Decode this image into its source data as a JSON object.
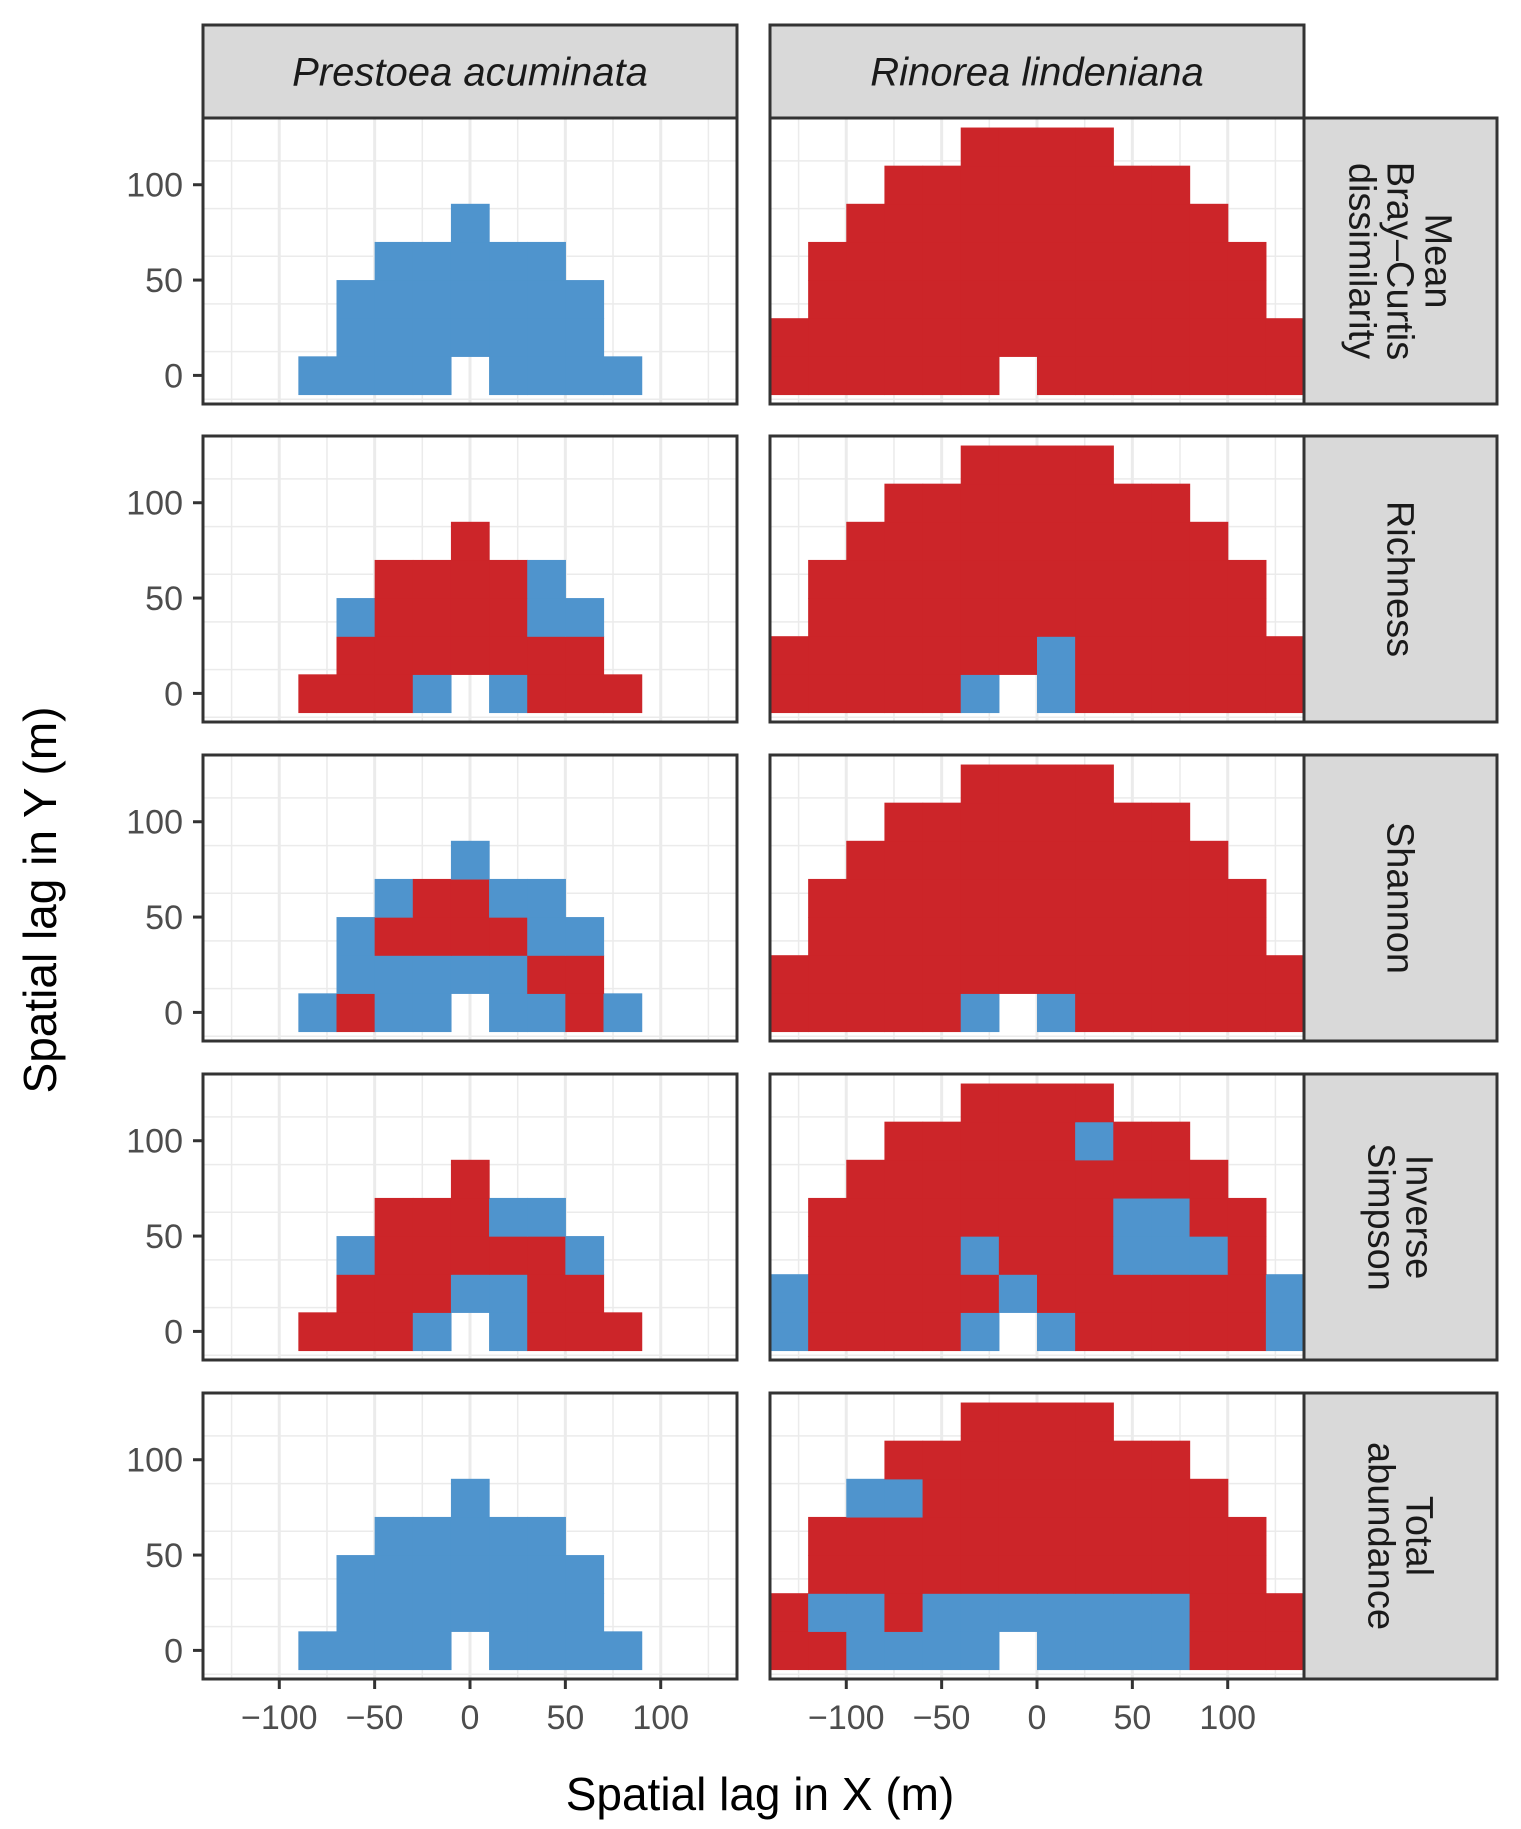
{
  "chart_data": {
    "type": "heatmap",
    "xlabel": "Spatial lag in X (m)",
    "ylabel": "Spatial lag in Y (m)",
    "x_ticks": [
      -100,
      -50,
      0,
      50,
      100
    ],
    "x_tick_labels": [
      "−100",
      "−50",
      "0",
      "50",
      "100"
    ],
    "y_ticks": [
      0,
      50,
      100
    ],
    "y_tick_labels": [
      "0",
      "50",
      "100"
    ],
    "xlim": [
      -140,
      140
    ],
    "ylim": [
      -15,
      135
    ],
    "cell_size": [
      20,
      20
    ],
    "colors": {
      "blue": "#4f94cd",
      "red": "#cc2529"
    },
    "columns": [
      "Prestoea acuminata",
      "Rinorea lindeniana"
    ],
    "rows": [
      "Mean\nBray–Curtis\ndissimilarity",
      "Richness",
      "Shannon",
      "Inverse\nSimpson",
      "Total\nabundance"
    ],
    "panels": [
      {
        "row": 0,
        "col": 0,
        "base": "blue",
        "cells": {}
      },
      {
        "row": 0,
        "col": 1,
        "base": "red",
        "cells": {}
      },
      {
        "row": 1,
        "col": 0,
        "base": "red",
        "cells": {
          "-20,0": "blue",
          "20,0": "blue",
          "-60,40": "blue",
          "40,60": "blue",
          "40,40": "blue",
          "60,40": "blue"
        }
      },
      {
        "row": 1,
        "col": 1,
        "base": "red",
        "cells": {
          "-30,0": "blue",
          "10,0": "blue",
          "10,20": "blue"
        }
      },
      {
        "row": 2,
        "col": 0,
        "base": "blue",
        "cells": {
          "-60,0": "red",
          "60,0": "red",
          "40,20": "red",
          "60,20": "red",
          "-40,40": "red",
          "-20,40": "red",
          "0,40": "red",
          "20,40": "red",
          "-20,60": "red",
          "0,60": "red"
        }
      },
      {
        "row": 2,
        "col": 1,
        "base": "red",
        "cells": {
          "-30,0": "blue",
          "10,0": "blue"
        }
      },
      {
        "row": 3,
        "col": 0,
        "base": "red",
        "cells": {
          "-20,0": "blue",
          "20,0": "blue",
          "0,20": "blue",
          "20,20": "blue",
          "-60,40": "blue",
          "60,40": "blue",
          "20,60": "blue",
          "40,60": "blue"
        }
      },
      {
        "row": 3,
        "col": 1,
        "base": "red",
        "cells": {
          "-130,0": "blue",
          "130,0": "blue",
          "-130,20": "blue",
          "130,20": "blue",
          "-30,0": "blue",
          "10,0": "blue",
          "-10,20": "blue",
          "-30,40": "blue",
          "50,40": "blue",
          "70,40": "blue",
          "90,40": "blue",
          "50,60": "blue",
          "70,60": "blue",
          "30,100": "blue"
        }
      },
      {
        "row": 4,
        "col": 0,
        "base": "blue",
        "cells": {}
      },
      {
        "row": 4,
        "col": 1,
        "base": "blue",
        "cells": {
          "-130,0": "red",
          "-110,0": "red",
          "90,0": "red",
          "110,0": "red",
          "130,0": "red",
          "-130,20": "red",
          "-70,20": "red",
          "90,20": "red",
          "110,20": "red",
          "130,20": "red",
          "-110,40": "red",
          "-90,40": "red",
          "-70,40": "red",
          "-50,40": "red",
          "-30,40": "red",
          "-10,40": "red",
          "10,40": "red",
          "30,40": "red",
          "50,40": "red",
          "70,40": "red",
          "90,40": "red",
          "110,40": "red",
          "-110,60": "red",
          "-90,60": "red",
          "-70,60": "red",
          "-50,60": "red",
          "-30,60": "red",
          "-10,60": "red",
          "10,60": "red",
          "30,60": "red",
          "50,60": "red",
          "70,60": "red",
          "90,60": "red",
          "110,60": "red",
          "-50,80": "red",
          "-30,80": "red",
          "-10,80": "red",
          "10,80": "red",
          "30,80": "red",
          "50,80": "red",
          "70,80": "red",
          "90,80": "red",
          "-70,100": "red",
          "-50,100": "red",
          "-30,100": "red",
          "-10,100": "red",
          "10,100": "red",
          "30,100": "red",
          "50,100": "red",
          "70,100": "red",
          "-30,120": "red",
          "-10,120": "red",
          "10,120": "red",
          "30,120": "red"
        }
      }
    ],
    "footprints": {
      "Prestoea acuminata": {
        "0": [
          -80,
          -60,
          -40,
          -20,
          20,
          40,
          60,
          80
        ],
        "20": [
          -60,
          -40,
          -20,
          0,
          20,
          40,
          60
        ],
        "40": [
          -60,
          -40,
          -20,
          0,
          20,
          40,
          60
        ],
        "60": [
          -40,
          -20,
          0,
          20,
          40
        ],
        "80": [
          0
        ]
      },
      "Rinorea lindeniana": {
        "0": [
          -130,
          -110,
          -90,
          -70,
          -50,
          -30,
          10,
          30,
          50,
          70,
          90,
          110,
          130
        ],
        "20": [
          -130,
          -110,
          -90,
          -70,
          -50,
          -30,
          -10,
          10,
          30,
          50,
          70,
          90,
          110,
          130
        ],
        "40": [
          -110,
          -90,
          -70,
          -50,
          -30,
          -10,
          10,
          30,
          50,
          70,
          90,
          110
        ],
        "60": [
          -110,
          -90,
          -70,
          -50,
          -30,
          -10,
          10,
          30,
          50,
          70,
          90,
          110
        ],
        "80": [
          -90,
          -70,
          -50,
          -30,
          -10,
          10,
          30,
          50,
          70,
          90
        ],
        "100": [
          -70,
          -50,
          -30,
          -10,
          10,
          30,
          50,
          70
        ],
        "120": [
          -30,
          -10,
          10,
          30
        ]
      }
    }
  }
}
